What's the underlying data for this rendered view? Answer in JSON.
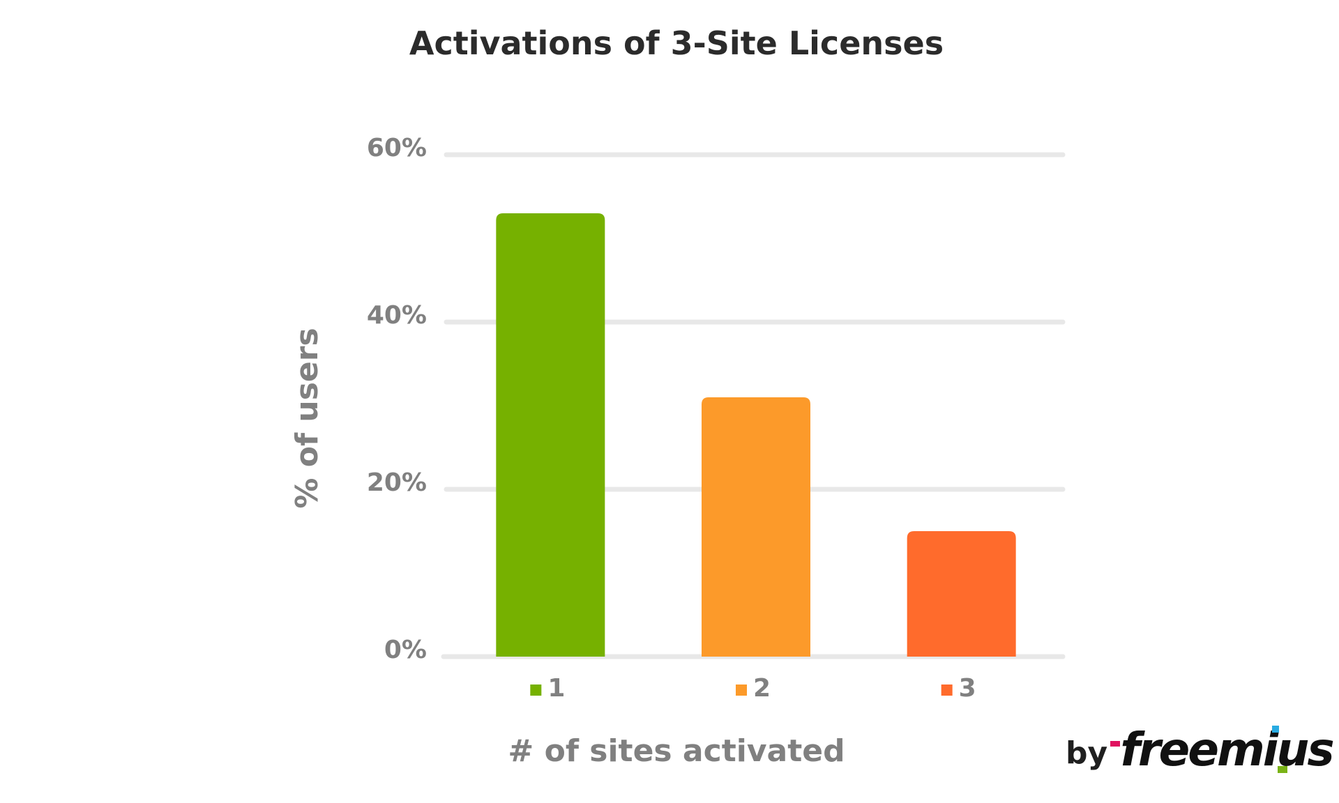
{
  "chart_data": {
    "type": "bar",
    "title": "Activations of 3-Site Licenses",
    "xlabel": "# of sites activated",
    "ylabel": "% of users",
    "categories": [
      "1",
      "2",
      "3"
    ],
    "values": [
      53,
      31,
      15
    ],
    "colors": [
      "#76b100",
      "#fc9a2a",
      "#ff6b2c"
    ],
    "ylim": [
      0,
      60
    ],
    "yticks": [
      0,
      20,
      40,
      60
    ],
    "ytick_labels": [
      "0%",
      "20%",
      "40%",
      "60%"
    ],
    "grid": true,
    "legend_placement": "bottom"
  },
  "branding": {
    "by": "by",
    "logo_text": "freemius",
    "logo_icon": "freemius-logo"
  }
}
